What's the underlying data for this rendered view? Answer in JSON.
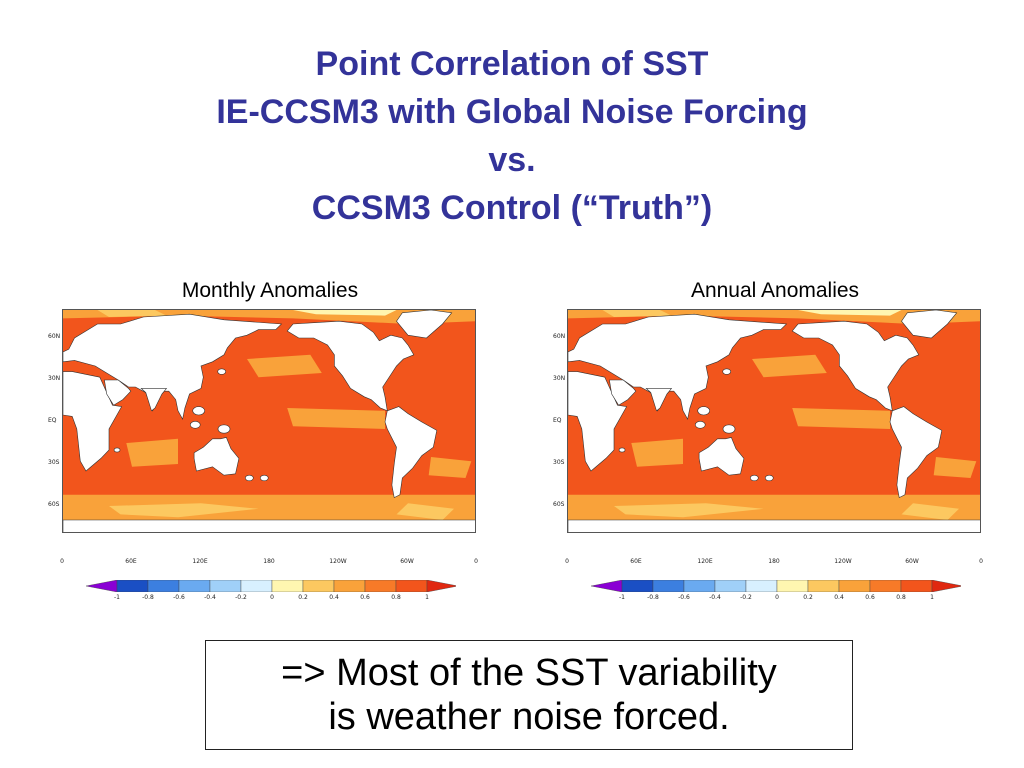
{
  "title": {
    "line1": "Point Correlation of SST",
    "line2": "IE-CCSM3 with Global Noise Forcing",
    "line3": "vs.",
    "line4": "CCSM3 Control (“Truth”)"
  },
  "panels": [
    {
      "label": "Monthly Anomalies"
    },
    {
      "label": "Annual Anomalies"
    }
  ],
  "map_axes": {
    "lat_labels": [
      "60N",
      "30N",
      "EQ",
      "30S",
      "60S"
    ],
    "lon_labels": [
      "0",
      "60E",
      "120E",
      "180",
      "120W",
      "60W",
      "0"
    ]
  },
  "colorbar": {
    "labels": [
      "-1",
      "-0.8",
      "-0.6",
      "-0.4",
      "-0.2",
      "0",
      "0.2",
      "0.4",
      "0.6",
      "0.8",
      "1"
    ],
    "colors": [
      "#8a00d4",
      "#1a4fc4",
      "#3c7fe0",
      "#6aaaf0",
      "#a0d0f8",
      "#d8f0ff",
      "#fff6b0",
      "#fcc860",
      "#f9a23a",
      "#f77a28",
      "#f2551c",
      "#e02810"
    ]
  },
  "colors": {
    "title": "#333399",
    "ocean_high": "#f2551c",
    "ocean_mid": "#f9a23a",
    "ocean_low": "#fcc860",
    "ocean_vlow": "#fff6b0",
    "land": "#ffffff"
  },
  "conclusion": {
    "line1": "=> Most of the SST variability",
    "line2": "is weather noise forced."
  }
}
